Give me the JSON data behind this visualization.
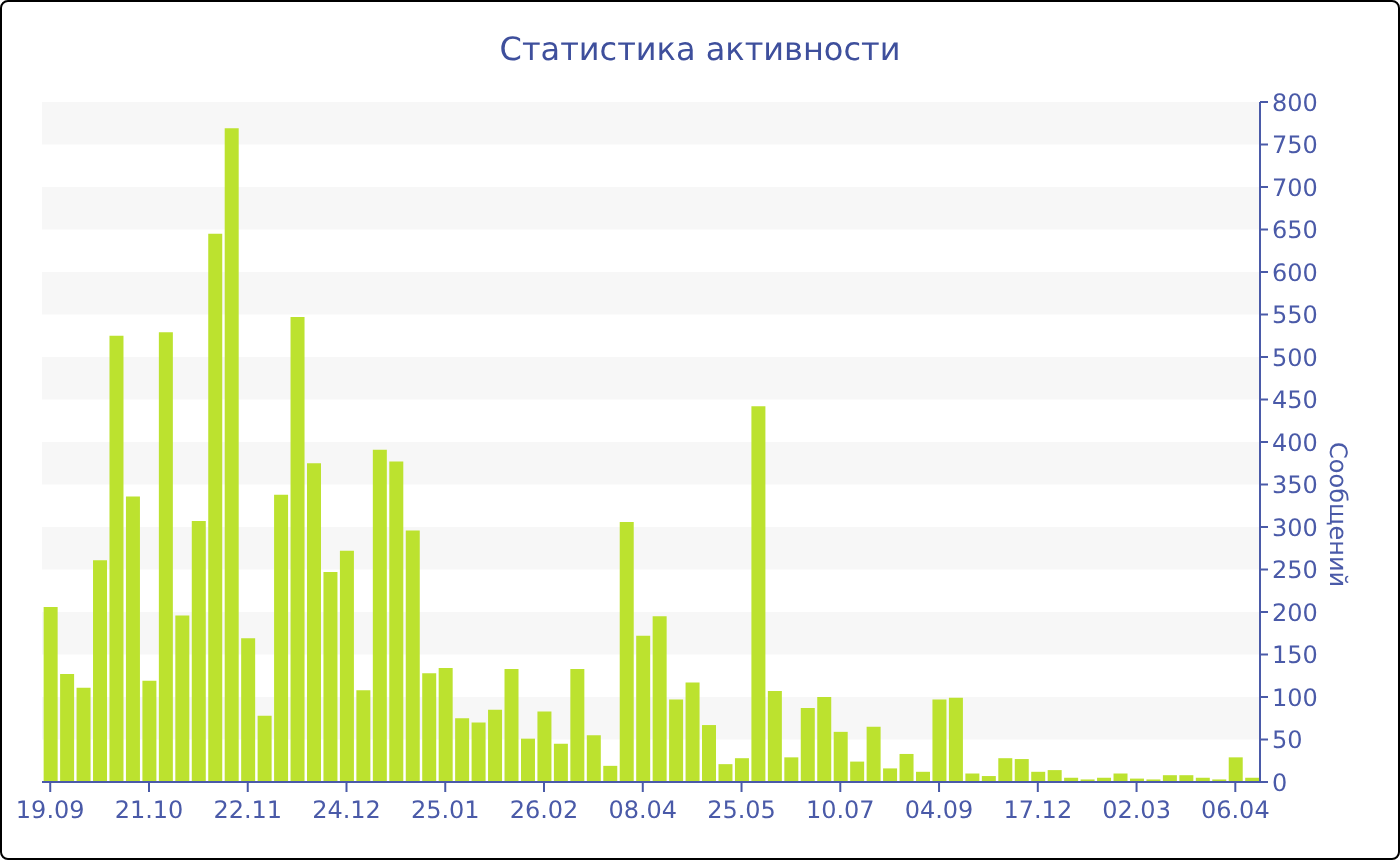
{
  "chart_data": {
    "type": "bar",
    "title": "Статистика активности",
    "ylabel": "Сообщений",
    "categories": [
      "19.09",
      null,
      null,
      null,
      null,
      null,
      "21.10",
      null,
      null,
      null,
      null,
      null,
      "22.11",
      null,
      null,
      null,
      null,
      null,
      "24.12",
      null,
      null,
      null,
      null,
      null,
      "25.01",
      null,
      null,
      null,
      null,
      null,
      "26.02",
      null,
      null,
      null,
      null,
      null,
      "08.04",
      null,
      null,
      null,
      null,
      null,
      "25.05",
      null,
      null,
      null,
      null,
      null,
      "10.07",
      null,
      null,
      null,
      null,
      null,
      "04.09",
      null,
      null,
      null,
      null,
      null,
      "17.12",
      null,
      null,
      null,
      null,
      null,
      "02.03",
      null,
      null,
      null,
      null,
      null,
      "06.04",
      null
    ],
    "values": [
      206,
      127,
      111,
      261,
      525,
      336,
      119,
      529,
      196,
      307,
      645,
      769,
      169,
      78,
      338,
      547,
      375,
      247,
      272,
      108,
      391,
      377,
      296,
      128,
      134,
      75,
      70,
      85,
      133,
      51,
      83,
      45,
      133,
      55,
      19,
      306,
      172,
      195,
      97,
      117,
      67,
      21,
      28,
      442,
      107,
      29,
      87,
      100,
      59,
      24,
      65,
      16,
      33,
      12,
      97,
      99,
      10,
      7,
      28,
      27,
      12,
      14,
      5,
      3,
      5,
      10,
      4,
      3,
      8,
      8,
      5,
      3,
      29,
      5
    ],
    "color": "#bce22f",
    "ylim": [
      0,
      800
    ],
    "yticks": [
      0,
      50,
      100,
      150,
      200,
      250,
      300,
      350,
      400,
      450,
      500,
      550,
      600,
      650,
      700,
      750,
      800
    ],
    "bands": [
      {
        "axis": "y",
        "from": 50,
        "to": 100,
        "color": "#f7f7f7"
      },
      {
        "axis": "y",
        "from": 150,
        "to": 200,
        "color": "#f7f7f7"
      },
      {
        "axis": "y",
        "from": 250,
        "to": 300,
        "color": "#f7f7f7"
      },
      {
        "axis": "y",
        "from": 350,
        "to": 400,
        "color": "#f7f7f7"
      },
      {
        "axis": "y",
        "from": 450,
        "to": 500,
        "color": "#f7f7f7"
      },
      {
        "axis": "y",
        "from": 550,
        "to": 600,
        "color": "#f7f7f7"
      },
      {
        "axis": "y",
        "from": 650,
        "to": 700,
        "color": "#f7f7f7"
      },
      {
        "axis": "y",
        "from": 750,
        "to": 800,
        "color": "#f7f7f7"
      }
    ],
    "grid": false,
    "legend": false
  }
}
